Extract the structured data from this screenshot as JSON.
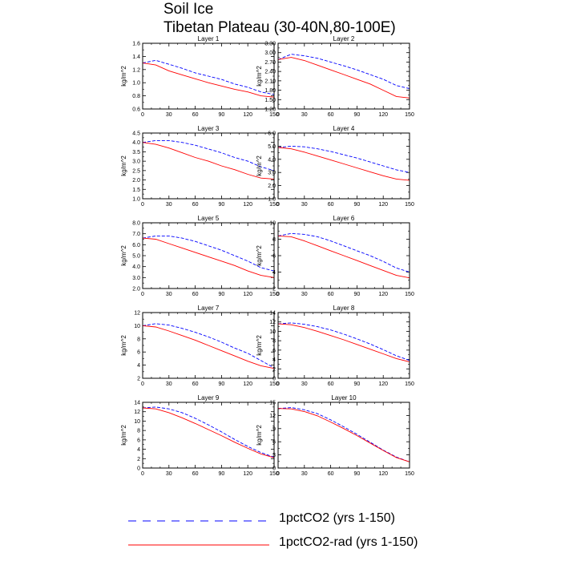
{
  "figure": {
    "title_line1": "Soil Ice",
    "title_line2": "Tibetan Plateau (30-40N,80-100E)"
  },
  "colors": {
    "series1": "#0000ff",
    "series2": "#ff0000"
  },
  "legend": [
    {
      "label": "1pctCO2 (yrs 1-150)",
      "color": "#0000ff",
      "style": "dashed"
    },
    {
      "label": "1pctCO2-rad (yrs 1-150)",
      "color": "#ff0000",
      "style": "solid"
    }
  ],
  "chart_data": [
    {
      "type": "line",
      "title": "Layer 1",
      "ylabel": "kg/m^2",
      "xlim": [
        0,
        150
      ],
      "ylim": [
        0.6,
        1.6
      ],
      "xticks": [
        0,
        30,
        60,
        90,
        120,
        150
      ],
      "yticks": [
        "0.6",
        "0.8",
        "1.0",
        "1.2",
        "1.4",
        "1.6"
      ],
      "series": [
        {
          "name": "1pctCO2 (yrs 1-150)",
          "style": "dashed",
          "x": [
            0,
            15,
            30,
            45,
            60,
            75,
            90,
            105,
            120,
            135,
            150
          ],
          "y": [
            1.3,
            1.34,
            1.28,
            1.22,
            1.15,
            1.1,
            1.05,
            0.98,
            0.93,
            0.86,
            0.82
          ]
        },
        {
          "name": "1pctCO2-rad (yrs 1-150)",
          "style": "solid",
          "x": [
            0,
            15,
            30,
            45,
            60,
            75,
            90,
            105,
            120,
            135,
            150
          ],
          "y": [
            1.3,
            1.27,
            1.18,
            1.12,
            1.06,
            1.0,
            0.95,
            0.9,
            0.86,
            0.8,
            0.78
          ]
        }
      ]
    },
    {
      "type": "line",
      "title": "Layer 2",
      "ylabel": "kg/m^2",
      "xlim": [
        0,
        150
      ],
      "ylim": [
        1.2,
        3.3
      ],
      "xticks": [
        0,
        30,
        60,
        90,
        120,
        150
      ],
      "yticks": [
        "1.20",
        "1.50",
        "1.80",
        "2.10",
        "2.40",
        "2.70",
        "3.00",
        "3.30"
      ],
      "series": [
        {
          "name": "1pctCO2 (yrs 1-150)",
          "style": "dashed",
          "x": [
            0,
            15,
            30,
            45,
            60,
            75,
            90,
            105,
            120,
            135,
            150
          ],
          "y": [
            2.78,
            2.95,
            2.9,
            2.82,
            2.7,
            2.58,
            2.45,
            2.3,
            2.15,
            1.95,
            1.85
          ]
        },
        {
          "name": "1pctCO2-rad (yrs 1-150)",
          "style": "solid",
          "x": [
            0,
            15,
            30,
            45,
            60,
            75,
            90,
            105,
            120,
            135,
            150
          ],
          "y": [
            2.78,
            2.85,
            2.75,
            2.6,
            2.45,
            2.3,
            2.15,
            2.0,
            1.8,
            1.6,
            1.55
          ]
        }
      ]
    },
    {
      "type": "line",
      "title": "Layer 3",
      "ylabel": "kg/m^2",
      "xlim": [
        0,
        150
      ],
      "ylim": [
        1.0,
        4.5
      ],
      "xticks": [
        0,
        30,
        60,
        90,
        120,
        150
      ],
      "yticks": [
        "1.0",
        "1.5",
        "2.0",
        "2.5",
        "3.0",
        "3.5",
        "4.0",
        "4.5"
      ],
      "series": [
        {
          "name": "1pctCO2 (yrs 1-150)",
          "style": "dashed",
          "x": [
            0,
            15,
            30,
            45,
            60,
            75,
            90,
            105,
            120,
            135,
            150
          ],
          "y": [
            4.0,
            4.1,
            4.1,
            4.0,
            3.85,
            3.65,
            3.45,
            3.2,
            3.0,
            2.7,
            2.5
          ]
        },
        {
          "name": "1pctCO2-rad (yrs 1-150)",
          "style": "solid",
          "x": [
            0,
            15,
            30,
            45,
            60,
            75,
            90,
            105,
            120,
            135,
            150
          ],
          "y": [
            4.0,
            3.9,
            3.7,
            3.45,
            3.2,
            3.0,
            2.75,
            2.55,
            2.3,
            2.1,
            2.05
          ]
        }
      ]
    },
    {
      "type": "line",
      "title": "Layer 4",
      "ylabel": "kg/m^2",
      "xlim": [
        0,
        150
      ],
      "ylim": [
        1.0,
        6.0
      ],
      "xticks": [
        0,
        30,
        60,
        90,
        120,
        150
      ],
      "yticks": [
        "1.0",
        "2.0",
        "3.0",
        "4.0",
        "5.0",
        "6.0"
      ],
      "series": [
        {
          "name": "1pctCO2 (yrs 1-150)",
          "style": "dashed",
          "x": [
            0,
            15,
            30,
            45,
            60,
            75,
            90,
            105,
            120,
            135,
            150
          ],
          "y": [
            4.9,
            5.0,
            4.95,
            4.8,
            4.6,
            4.35,
            4.1,
            3.8,
            3.5,
            3.2,
            3.0
          ]
        },
        {
          "name": "1pctCO2-rad (yrs 1-150)",
          "style": "solid",
          "x": [
            0,
            15,
            30,
            45,
            60,
            75,
            90,
            105,
            120,
            135,
            150
          ],
          "y": [
            4.9,
            4.8,
            4.55,
            4.25,
            3.95,
            3.65,
            3.35,
            3.05,
            2.75,
            2.5,
            2.4
          ]
        }
      ]
    },
    {
      "type": "line",
      "title": "Layer 5",
      "ylabel": "kg/m^2",
      "xlim": [
        0,
        150
      ],
      "ylim": [
        2.0,
        8.0
      ],
      "xticks": [
        0,
        30,
        60,
        90,
        120,
        150
      ],
      "yticks": [
        "2.0",
        "3.0",
        "4.0",
        "5.0",
        "6.0",
        "7.0",
        "8.0"
      ],
      "series": [
        {
          "name": "1pctCO2 (yrs 1-150)",
          "style": "dashed",
          "x": [
            0,
            15,
            30,
            45,
            60,
            75,
            90,
            105,
            120,
            135,
            150
          ],
          "y": [
            6.6,
            6.8,
            6.8,
            6.6,
            6.3,
            5.9,
            5.5,
            5.0,
            4.5,
            3.9,
            3.6
          ]
        },
        {
          "name": "1pctCO2-rad (yrs 1-150)",
          "style": "solid",
          "x": [
            0,
            15,
            30,
            45,
            60,
            75,
            90,
            105,
            120,
            135,
            150
          ],
          "y": [
            6.6,
            6.5,
            6.1,
            5.7,
            5.3,
            4.9,
            4.5,
            4.1,
            3.6,
            3.2,
            3.0
          ]
        }
      ]
    },
    {
      "type": "line",
      "title": "Layer 6",
      "ylabel": "kg/m^2",
      "xlim": [
        0,
        150
      ],
      "ylim": [
        2,
        10
      ],
      "xticks": [
        0,
        30,
        60,
        90,
        120,
        150
      ],
      "yticks": [
        "2",
        "4",
        "6",
        "8",
        "10"
      ],
      "series": [
        {
          "name": "1pctCO2 (yrs 1-150)",
          "style": "dashed",
          "x": [
            0,
            15,
            30,
            45,
            60,
            75,
            90,
            105,
            120,
            135,
            150
          ],
          "y": [
            8.4,
            8.7,
            8.6,
            8.3,
            7.8,
            7.2,
            6.6,
            6.0,
            5.3,
            4.5,
            4.0
          ]
        },
        {
          "name": "1pctCO2-rad (yrs 1-150)",
          "style": "solid",
          "x": [
            0,
            15,
            30,
            45,
            60,
            75,
            90,
            105,
            120,
            135,
            150
          ],
          "y": [
            8.4,
            8.3,
            7.8,
            7.2,
            6.6,
            6.0,
            5.4,
            4.8,
            4.2,
            3.6,
            3.3
          ]
        }
      ]
    },
    {
      "type": "line",
      "title": "Layer 7",
      "ylabel": "kg/m^2",
      "xlim": [
        0,
        150
      ],
      "ylim": [
        2,
        12
      ],
      "xticks": [
        0,
        30,
        60,
        90,
        120,
        150
      ],
      "yticks": [
        "2",
        "4",
        "6",
        "8",
        "10",
        "12"
      ],
      "series": [
        {
          "name": "1pctCO2 (yrs 1-150)",
          "style": "dashed",
          "x": [
            0,
            15,
            30,
            45,
            60,
            75,
            90,
            105,
            120,
            135,
            150
          ],
          "y": [
            10.0,
            10.3,
            10.1,
            9.6,
            9.0,
            8.3,
            7.5,
            6.6,
            5.8,
            4.7,
            3.6
          ]
        },
        {
          "name": "1pctCO2-rad (yrs 1-150)",
          "style": "solid",
          "x": [
            0,
            15,
            30,
            45,
            60,
            75,
            90,
            105,
            120,
            135,
            150
          ],
          "y": [
            10.0,
            9.8,
            9.2,
            8.5,
            7.8,
            7.0,
            6.2,
            5.4,
            4.6,
            3.9,
            3.5
          ]
        }
      ]
    },
    {
      "type": "line",
      "title": "Layer 8",
      "ylabel": "kg/m^2",
      "xlim": [
        0,
        150
      ],
      "ylim": [
        0,
        14
      ],
      "xticks": [
        0,
        30,
        60,
        90,
        120,
        150
      ],
      "yticks": [
        "0",
        "2",
        "4",
        "6",
        "8",
        "10",
        "12",
        "14"
      ],
      "series": [
        {
          "name": "1pctCO2 (yrs 1-150)",
          "style": "dashed",
          "x": [
            0,
            15,
            30,
            45,
            60,
            75,
            90,
            105,
            120,
            135,
            150
          ],
          "y": [
            11.6,
            11.8,
            11.5,
            11.0,
            10.3,
            9.4,
            8.4,
            7.3,
            6.1,
            4.8,
            3.8
          ]
        },
        {
          "name": "1pctCO2-rad (yrs 1-150)",
          "style": "solid",
          "x": [
            0,
            15,
            30,
            45,
            60,
            75,
            90,
            105,
            120,
            135,
            150
          ],
          "y": [
            11.6,
            11.4,
            10.8,
            10.0,
            9.1,
            8.2,
            7.2,
            6.2,
            5.2,
            4.2,
            3.5
          ]
        }
      ]
    },
    {
      "type": "line",
      "title": "Layer 9",
      "ylabel": "kg/m^2",
      "xlim": [
        0,
        150
      ],
      "ylim": [
        0,
        14
      ],
      "xticks": [
        0,
        30,
        60,
        90,
        120,
        150
      ],
      "yticks": [
        "0",
        "2",
        "4",
        "6",
        "8",
        "10",
        "12",
        "14"
      ],
      "series": [
        {
          "name": "1pctCO2 (yrs 1-150)",
          "style": "dashed",
          "x": [
            0,
            15,
            30,
            45,
            60,
            75,
            90,
            105,
            120,
            135,
            150
          ],
          "y": [
            12.8,
            13.0,
            12.6,
            11.8,
            10.6,
            9.2,
            7.7,
            6.1,
            4.6,
            3.3,
            2.3
          ]
        },
        {
          "name": "1pctCO2-rad (yrs 1-150)",
          "style": "solid",
          "x": [
            0,
            15,
            30,
            45,
            60,
            75,
            90,
            105,
            120,
            135,
            150
          ],
          "y": [
            12.8,
            12.6,
            11.8,
            10.7,
            9.5,
            8.2,
            6.9,
            5.5,
            4.2,
            3.0,
            2.2
          ]
        }
      ]
    },
    {
      "type": "line",
      "title": "Layer 10",
      "ylabel": "kg/m^2",
      "xlim": [
        0,
        150
      ],
      "ylim": [
        0,
        15
      ],
      "xticks": [
        0,
        30,
        60,
        90,
        120,
        150
      ],
      "yticks": [
        "0",
        "3",
        "6",
        "9",
        "12",
        "15"
      ],
      "series": [
        {
          "name": "1pctCO2 (yrs 1-150)",
          "style": "dashed",
          "x": [
            0,
            15,
            30,
            45,
            60,
            75,
            90,
            105,
            120,
            135,
            150
          ],
          "y": [
            13.6,
            13.8,
            13.3,
            12.4,
            11.0,
            9.4,
            7.7,
            5.9,
            4.1,
            2.5,
            1.4
          ]
        },
        {
          "name": "1pctCO2-rad (yrs 1-150)",
          "style": "solid",
          "x": [
            0,
            15,
            30,
            45,
            60,
            75,
            90,
            105,
            120,
            135,
            150
          ],
          "y": [
            13.6,
            13.5,
            12.9,
            11.9,
            10.5,
            9.0,
            7.4,
            5.7,
            4.0,
            2.4,
            1.4
          ]
        }
      ]
    }
  ]
}
